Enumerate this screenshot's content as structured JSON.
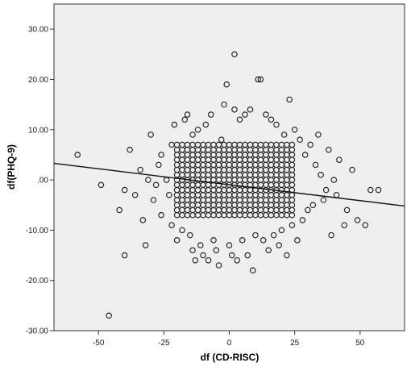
{
  "chart_data": {
    "type": "scatter",
    "title": "",
    "xlabel": "df (CD-RISC)",
    "ylabel": "df(PHQ-9)",
    "xlim": [
      -67,
      67
    ],
    "ylim": [
      -30,
      35
    ],
    "x_ticks": [
      -50,
      -25,
      0,
      25,
      50
    ],
    "x_tick_labels": [
      "-50",
      "-25",
      "0",
      "25",
      "50"
    ],
    "y_ticks": [
      30,
      20,
      10,
      0,
      -10,
      -20,
      -30
    ],
    "y_tick_labels": [
      "30.00",
      "20.00",
      "10.00",
      ".00",
      "-10.00",
      "-20.00",
      "-30.00"
    ],
    "grid": false,
    "legend": "none",
    "plot_background": "#efefef",
    "marker_color": "#2b2b2b",
    "line_color": "#111111",
    "fit_line": {
      "x": [
        -67,
        67
      ],
      "y": [
        3.3,
        -5.2
      ]
    },
    "cloud": {
      "x_min": -20,
      "x_max": 24,
      "x_step": 2,
      "y_min": -7,
      "y_max": 7,
      "y_step": 1
    },
    "points": [
      [
        -58,
        5
      ],
      [
        -49,
        -1
      ],
      [
        -46,
        -27
      ],
      [
        -42,
        -6
      ],
      [
        -40,
        -2
      ],
      [
        -40,
        -15
      ],
      [
        -38,
        6
      ],
      [
        -36,
        -3
      ],
      [
        -34,
        2
      ],
      [
        -33,
        -8
      ],
      [
        -32,
        -13
      ],
      [
        -31,
        0
      ],
      [
        -30,
        9
      ],
      [
        -29,
        -4
      ],
      [
        -28,
        -1
      ],
      [
        -27,
        3
      ],
      [
        -26,
        5
      ],
      [
        -26,
        -7
      ],
      [
        -24,
        0
      ],
      [
        -23,
        -3
      ],
      [
        -22,
        7
      ],
      [
        -22,
        -9
      ],
      [
        -21,
        11
      ],
      [
        -20,
        -12
      ],
      [
        -18,
        -10
      ],
      [
        -17,
        12
      ],
      [
        -16,
        13
      ],
      [
        -15,
        -11
      ],
      [
        -14,
        9
      ],
      [
        -14,
        -14
      ],
      [
        -13,
        -16
      ],
      [
        -12,
        10
      ],
      [
        -11,
        -13
      ],
      [
        -10,
        -15
      ],
      [
        -9,
        11
      ],
      [
        -8,
        -16
      ],
      [
        -7,
        13
      ],
      [
        -6,
        -12
      ],
      [
        -5,
        -14
      ],
      [
        -4,
        -17
      ],
      [
        -3,
        8
      ],
      [
        -2,
        15
      ],
      [
        -1,
        19
      ],
      [
        0,
        -13
      ],
      [
        1,
        -15
      ],
      [
        2,
        14
      ],
      [
        2,
        25
      ],
      [
        3,
        -16
      ],
      [
        4,
        12
      ],
      [
        5,
        -12
      ],
      [
        6,
        13
      ],
      [
        7,
        -15
      ],
      [
        8,
        14
      ],
      [
        9,
        -18
      ],
      [
        10,
        -11
      ],
      [
        11,
        20
      ],
      [
        12,
        20
      ],
      [
        13,
        -12
      ],
      [
        14,
        13
      ],
      [
        15,
        -14
      ],
      [
        16,
        12
      ],
      [
        17,
        -11
      ],
      [
        18,
        11
      ],
      [
        19,
        -13
      ],
      [
        20,
        -10
      ],
      [
        21,
        9
      ],
      [
        22,
        -15
      ],
      [
        23,
        16
      ],
      [
        24,
        -9
      ],
      [
        25,
        10
      ],
      [
        26,
        -12
      ],
      [
        27,
        8
      ],
      [
        28,
        -8
      ],
      [
        29,
        5
      ],
      [
        30,
        -6
      ],
      [
        31,
        7
      ],
      [
        32,
        -5
      ],
      [
        33,
        3
      ],
      [
        34,
        9
      ],
      [
        35,
        1
      ],
      [
        36,
        -4
      ],
      [
        37,
        -2
      ],
      [
        38,
        6
      ],
      [
        39,
        -11
      ],
      [
        40,
        0
      ],
      [
        41,
        -3
      ],
      [
        42,
        4
      ],
      [
        44,
        -9
      ],
      [
        45,
        -6
      ],
      [
        47,
        2
      ],
      [
        49,
        -8
      ],
      [
        52,
        -9
      ],
      [
        54,
        -2
      ],
      [
        57,
        -2
      ]
    ]
  }
}
